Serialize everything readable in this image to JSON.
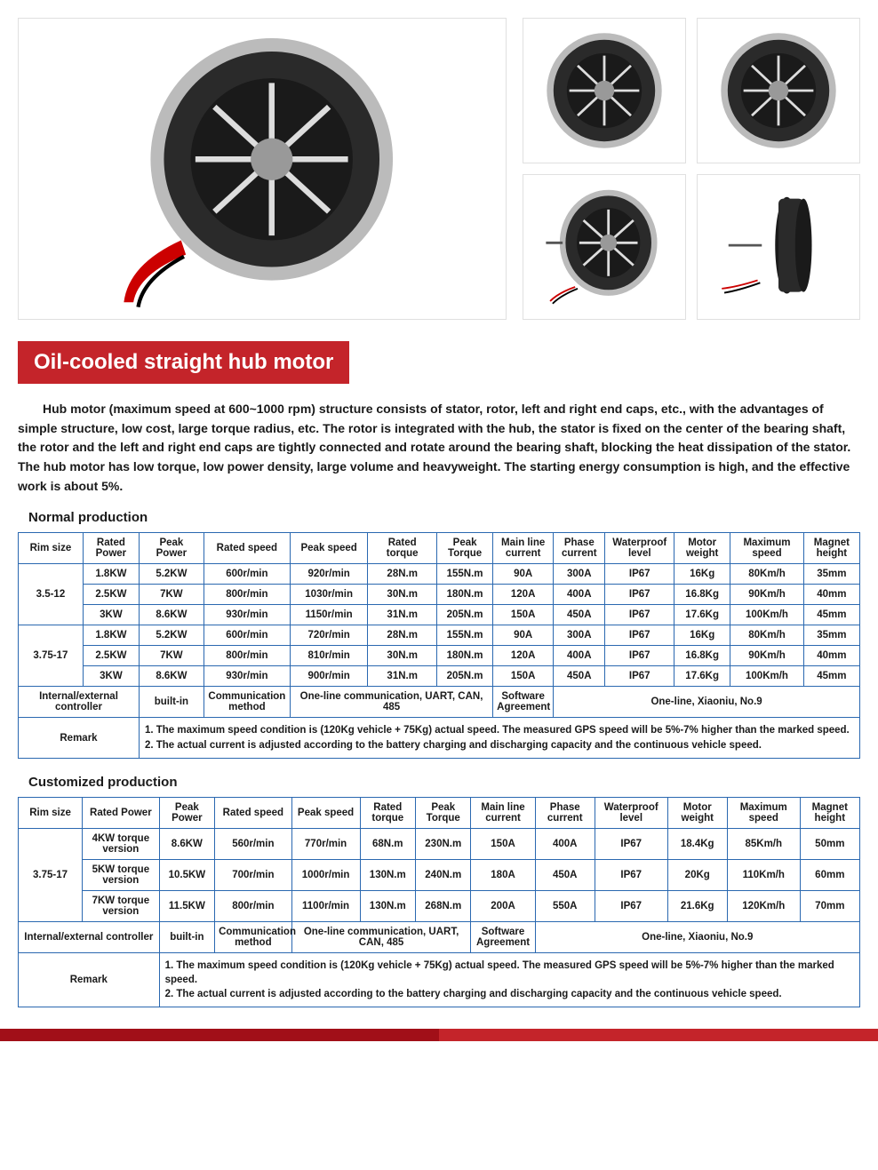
{
  "title": "Oil-cooled straight hub motor",
  "description": "Hub motor (maximum speed at 600~1000 rpm) structure consists of stator, rotor, left and right end caps, etc., with the advantages of simple structure, low cost, large torque radius, etc. The rotor is integrated with the hub, the stator is fixed on the center of the bearing shaft, the rotor and the left and right end caps are tightly connected and rotate around the bearing shaft, blocking the heat dissipation of the stator. The hub motor has low torque, low power density, large volume and heavyweight. The starting energy consumption is high, and the effective work is about 5%.",
  "section1_title": "Normal production",
  "section2_title": "Customized production",
  "normal_table": {
    "headers": [
      "Rim size",
      "Rated Power",
      "Peak Power",
      "Rated speed",
      "Peak speed",
      "Rated torque",
      "Peak Torque",
      "Main line current",
      "Phase current",
      "Waterproof level",
      "Motor weight",
      "Maximum speed",
      "Magnet height"
    ],
    "group1_rim": "3.5-12",
    "group1_rows": [
      [
        "1.8KW",
        "5.2KW",
        "600r/min",
        "920r/min",
        "28N.m",
        "155N.m",
        "90A",
        "300A",
        "IP67",
        "16Kg",
        "80Km/h",
        "35mm"
      ],
      [
        "2.5KW",
        "7KW",
        "800r/min",
        "1030r/min",
        "30N.m",
        "180N.m",
        "120A",
        "400A",
        "IP67",
        "16.8Kg",
        "90Km/h",
        "40mm"
      ],
      [
        "3KW",
        "8.6KW",
        "930r/min",
        "1150r/min",
        "31N.m",
        "205N.m",
        "150A",
        "450A",
        "IP67",
        "17.6Kg",
        "100Km/h",
        "45mm"
      ]
    ],
    "group2_rim": "3.75-17",
    "group2_rows": [
      [
        "1.8KW",
        "5.2KW",
        "600r/min",
        "720r/min",
        "28N.m",
        "155N.m",
        "90A",
        "300A",
        "IP67",
        "16Kg",
        "80Km/h",
        "35mm"
      ],
      [
        "2.5KW",
        "7KW",
        "800r/min",
        "810r/min",
        "30N.m",
        "180N.m",
        "120A",
        "400A",
        "IP67",
        "16.8Kg",
        "90Km/h",
        "40mm"
      ],
      [
        "3KW",
        "8.6KW",
        "930r/min",
        "900r/min",
        "31N.m",
        "205N.m",
        "150A",
        "450A",
        "IP67",
        "17.6Kg",
        "100Km/h",
        "45mm"
      ]
    ],
    "ie_label": "Internal/external controller",
    "ie_value": "built-in",
    "comm_label": "Communication method",
    "comm_value": "One-line communication, UART, CAN, 485",
    "sw_label": "Software Agreement",
    "sw_value": "One-line, Xiaoniu, No.9",
    "remark_label": "Remark",
    "remark_value": "1. The maximum speed condition is (120Kg vehicle + 75Kg) actual speed. The measured GPS speed will be 5%-7% higher than the marked speed.\n2. The actual current is adjusted according to the battery charging and discharging capacity and the continuous vehicle speed."
  },
  "custom_table": {
    "headers": [
      "Rim size",
      "Rated Power",
      "Peak Power",
      "Rated speed",
      "Peak speed",
      "Rated torque",
      "Peak Torque",
      "Main line current",
      "Phase current",
      "Waterproof level",
      "Motor weight",
      "Maximum speed",
      "Magnet height"
    ],
    "group_rim": "3.75-17",
    "rows": [
      [
        "4KW torque version",
        "8.6KW",
        "560r/min",
        "770r/min",
        "68N.m",
        "230N.m",
        "150A",
        "400A",
        "IP67",
        "18.4Kg",
        "85Km/h",
        "50mm"
      ],
      [
        "5KW torque version",
        "10.5KW",
        "700r/min",
        "1000r/min",
        "130N.m",
        "240N.m",
        "180A",
        "450A",
        "IP67",
        "20Kg",
        "110Km/h",
        "60mm"
      ],
      [
        "7KW torque version",
        "11.5KW",
        "800r/min",
        "1100r/min",
        "130N.m",
        "268N.m",
        "200A",
        "550A",
        "IP67",
        "21.6Kg",
        "120Km/h",
        "70mm"
      ]
    ],
    "ie_label": "Internal/external controller",
    "ie_value": "built-in",
    "comm_label": "Communication method",
    "comm_value": "One-line communication, UART, CAN, 485",
    "sw_label": "Software Agreement",
    "sw_value": "One-line, Xiaoniu, No.9",
    "remark_label": "Remark",
    "remark_value": "1. The maximum speed condition is (120Kg vehicle + 75Kg) actual speed. The measured GPS speed will be 5%-7% higher than the marked speed.\n2. The actual current is adjusted according to the battery charging and discharging capacity and the continuous vehicle speed."
  },
  "colors": {
    "title_bg": "#c4242a",
    "border": "#2a68b0",
    "footer_left": "#a10f18",
    "footer_right": "#c4242a"
  }
}
